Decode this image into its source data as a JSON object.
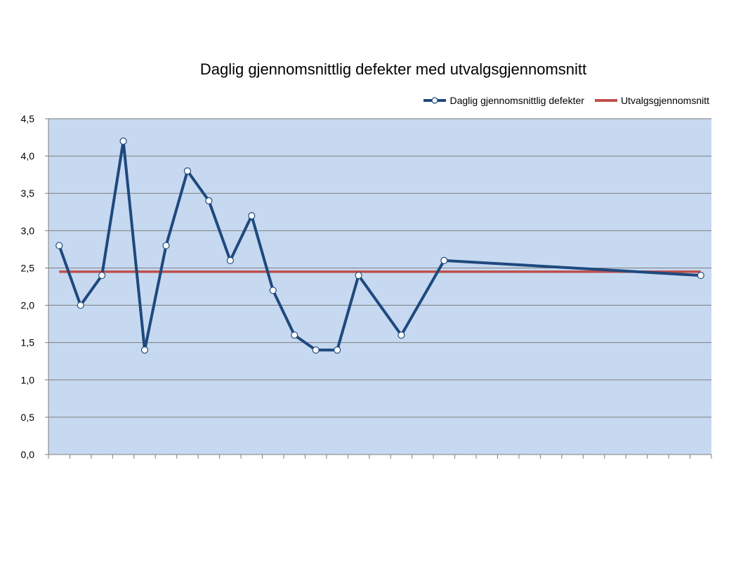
{
  "chart_data": {
    "type": "line",
    "title": "Daglig gjennomsnittlig defekter med utvalgsgjennomsnitt",
    "xlabel": "",
    "ylabel": "",
    "ylim": [
      0,
      4.5
    ],
    "y_ticks": [
      "0,0",
      "0,5",
      "1,0",
      "1,5",
      "2,0",
      "2,5",
      "3,0",
      "3,5",
      "4,0",
      "4,5"
    ],
    "x_categories": 31,
    "grid": true,
    "legend_position": "top-right",
    "plot_background": "#c6d9f1",
    "series": [
      {
        "name": "Daglig gjennomsnittlig defekter",
        "color": "#1f497d",
        "marker": "circle",
        "points": [
          {
            "x": 1,
            "y": 2.8
          },
          {
            "x": 2,
            "y": 2.0
          },
          {
            "x": 3,
            "y": 2.4
          },
          {
            "x": 4,
            "y": 4.2
          },
          {
            "x": 5,
            "y": 1.4
          },
          {
            "x": 6,
            "y": 2.8
          },
          {
            "x": 7,
            "y": 3.8
          },
          {
            "x": 8,
            "y": 3.4
          },
          {
            "x": 9,
            "y": 2.6
          },
          {
            "x": 10,
            "y": 3.2
          },
          {
            "x": 11,
            "y": 2.2
          },
          {
            "x": 12,
            "y": 1.6
          },
          {
            "x": 13,
            "y": 1.4
          },
          {
            "x": 14,
            "y": 1.4
          },
          {
            "x": 15,
            "y": 2.4
          },
          {
            "x": 17,
            "y": 1.6
          },
          {
            "x": 19,
            "y": 2.6
          },
          {
            "x": 31,
            "y": 2.4
          }
        ]
      },
      {
        "name": "Utvalgsgjennomsnitt",
        "color": "#c0504d",
        "marker": "none",
        "points": [
          {
            "x": 1,
            "y": 2.45
          },
          {
            "x": 31,
            "y": 2.45
          }
        ]
      }
    ]
  }
}
